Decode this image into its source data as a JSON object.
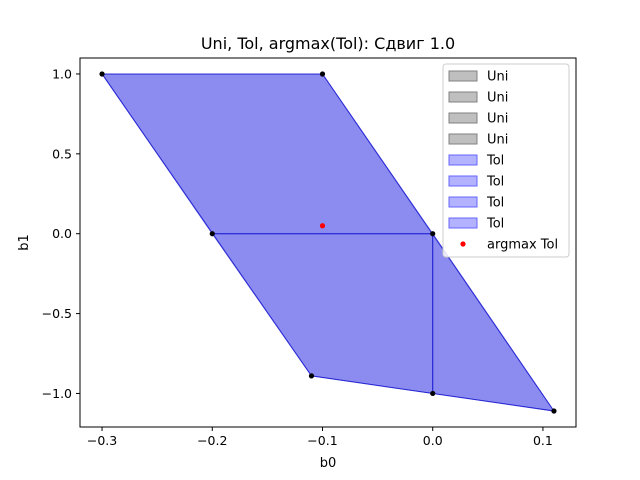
{
  "chart_data": {
    "type": "area",
    "title": "Uni, Tol, argmax(Tol): Сдвиг 1.0",
    "xlabel": "b0",
    "ylabel": "b1",
    "xlim": [
      -0.32,
      0.13
    ],
    "ylim": [
      -1.21,
      1.1
    ],
    "xticks": [
      -0.3,
      -0.2,
      -0.1,
      0.0,
      0.1
    ],
    "xtick_labels": [
      "−0.3",
      "−0.2",
      "−0.1",
      "0.0",
      "0.1"
    ],
    "yticks": [
      1.0,
      0.5,
      0.0,
      -0.5,
      -1.0
    ],
    "ytick_labels": [
      "1.0",
      "0.5",
      "0.0",
      "−0.5",
      "−1.0"
    ],
    "grid": false,
    "legend_position": "top-right",
    "colors": {
      "uni_fill": "#808080",
      "tol_fill": "#6666ff",
      "tol_edge": "#0000cc",
      "vertex": "#000000",
      "argmax": "#ff0000",
      "overlap_fill": "#8888d4"
    },
    "regions": [
      {
        "name": "Uni",
        "polygon": [
          [
            -0.3,
            1.0
          ],
          [
            -0.1,
            1.0
          ],
          [
            0.0,
            0.0
          ],
          [
            -0.2,
            0.0
          ]
        ]
      },
      {
        "name": "Uni",
        "polygon": [
          [
            -0.2,
            0.0
          ],
          [
            0.0,
            0.0
          ],
          [
            0.0,
            -1.0
          ],
          [
            -0.11,
            -0.89
          ]
        ]
      },
      {
        "name": "Uni",
        "polygon": [
          [
            0.0,
            0.0
          ],
          [
            0.11,
            -1.11
          ],
          [
            0.0,
            -1.0
          ]
        ]
      },
      {
        "name": "Uni",
        "polygon": [
          [
            -0.3,
            1.0
          ],
          [
            -0.1,
            1.0
          ],
          [
            0.11,
            -1.11
          ],
          [
            -0.11,
            -0.89
          ]
        ]
      },
      {
        "name": "Tol",
        "polygon": [
          [
            -0.3,
            1.0
          ],
          [
            -0.1,
            1.0
          ],
          [
            0.0,
            0.0
          ],
          [
            -0.2,
            0.0
          ]
        ]
      },
      {
        "name": "Tol",
        "polygon": [
          [
            -0.2,
            0.0
          ],
          [
            0.0,
            0.0
          ],
          [
            0.0,
            -1.0
          ],
          [
            -0.11,
            -0.89
          ]
        ]
      },
      {
        "name": "Tol",
        "polygon": [
          [
            0.0,
            0.0
          ],
          [
            0.11,
            -1.11
          ],
          [
            0.0,
            -1.0
          ]
        ]
      },
      {
        "name": "Tol",
        "polygon": [
          [
            -0.3,
            1.0
          ],
          [
            -0.1,
            1.0
          ],
          [
            0.11,
            -1.11
          ],
          [
            -0.11,
            -0.89
          ]
        ]
      }
    ],
    "vertices": [
      [
        -0.3,
        1.0
      ],
      [
        -0.1,
        1.0
      ],
      [
        -0.2,
        0.0
      ],
      [
        0.0,
        0.0
      ],
      [
        -0.11,
        -0.89
      ],
      [
        0.0,
        -1.0
      ],
      [
        0.11,
        -1.11
      ]
    ],
    "argmax": {
      "name": "argmax Tol",
      "x": -0.1,
      "y": 0.05
    },
    "legend": [
      {
        "label": "Uni",
        "kind": "patch",
        "color": "#808080"
      },
      {
        "label": "Uni",
        "kind": "patch",
        "color": "#808080"
      },
      {
        "label": "Uni",
        "kind": "patch",
        "color": "#808080"
      },
      {
        "label": "Uni",
        "kind": "patch",
        "color": "#808080"
      },
      {
        "label": "Tol",
        "kind": "patch",
        "color": "#6666ff"
      },
      {
        "label": "Tol",
        "kind": "patch",
        "color": "#6666ff"
      },
      {
        "label": "Tol",
        "kind": "patch",
        "color": "#6666ff"
      },
      {
        "label": "Tol",
        "kind": "patch",
        "color": "#6666ff"
      },
      {
        "label": "argmax Tol",
        "kind": "dot",
        "color": "#ff0000"
      }
    ]
  }
}
